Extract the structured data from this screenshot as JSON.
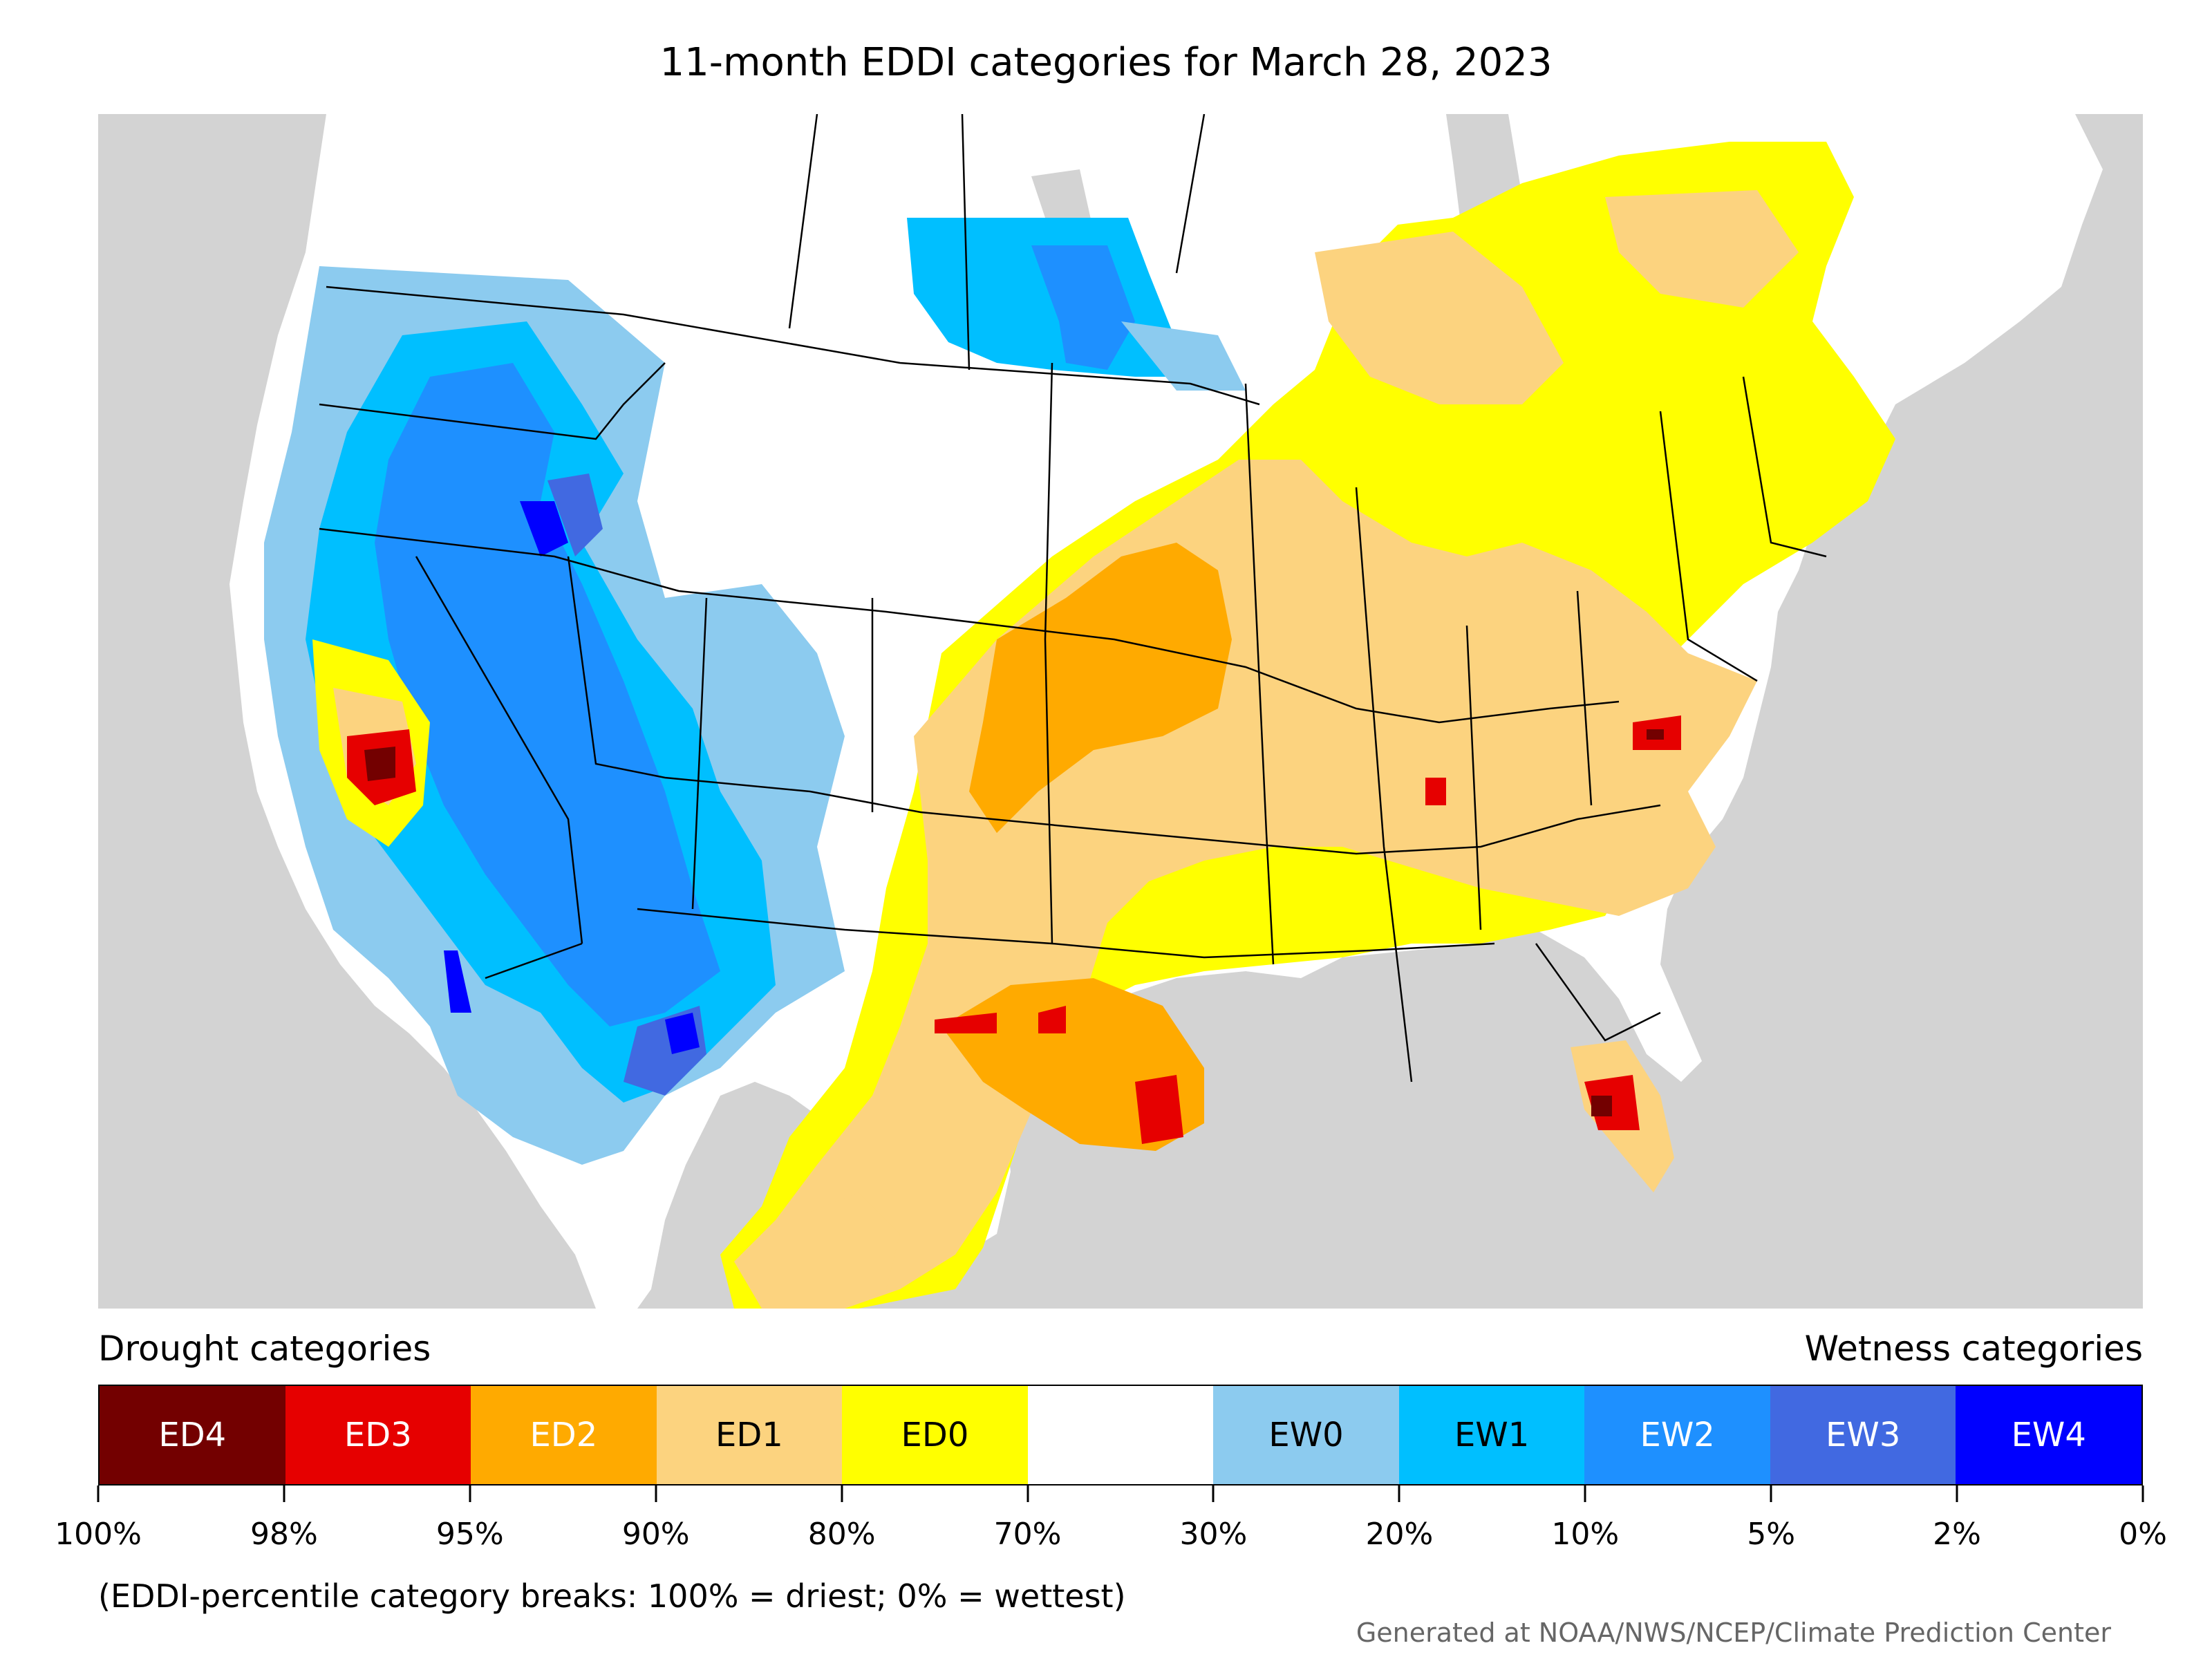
{
  "title": "11-month EDDI categories for March 28, 2023",
  "legend": {
    "drought_heading": "Drought categories",
    "wetness_heading": "Wetness categories",
    "categories": [
      {
        "label": "ED4",
        "color": "#730000",
        "text": "light"
      },
      {
        "label": "ED3",
        "color": "#e60000",
        "text": "light"
      },
      {
        "label": "ED2",
        "color": "#ffaa00",
        "text": "light"
      },
      {
        "label": "ED1",
        "color": "#fcd37f",
        "text": "dark"
      },
      {
        "label": "ED0",
        "color": "#ffff00",
        "text": "dark"
      },
      {
        "label": "",
        "color": "#ffffff",
        "text": "dark"
      },
      {
        "label": "EW0",
        "color": "#8ccbef",
        "text": "dark"
      },
      {
        "label": "EW1",
        "color": "#00bfff",
        "text": "dark"
      },
      {
        "label": "EW2",
        "color": "#1e90ff",
        "text": "light"
      },
      {
        "label": "EW3",
        "color": "#4169e1",
        "text": "light"
      },
      {
        "label": "EW4",
        "color": "#0000ff",
        "text": "light"
      }
    ],
    "breaks": [
      "100%",
      "98%",
      "95%",
      "90%",
      "80%",
      "70%",
      "30%",
      "20%",
      "10%",
      "5%",
      "2%",
      "0%"
    ],
    "note": "(EDDI-percentile category breaks: 100% = driest; 0% = wettest)"
  },
  "credit": "Generated at NOAA/NWS/NCEP/Climate Prediction Center",
  "colors": {
    "land_outside": "#d3d3d3",
    "water": "#d3d3d3",
    "border": "#000000"
  }
}
